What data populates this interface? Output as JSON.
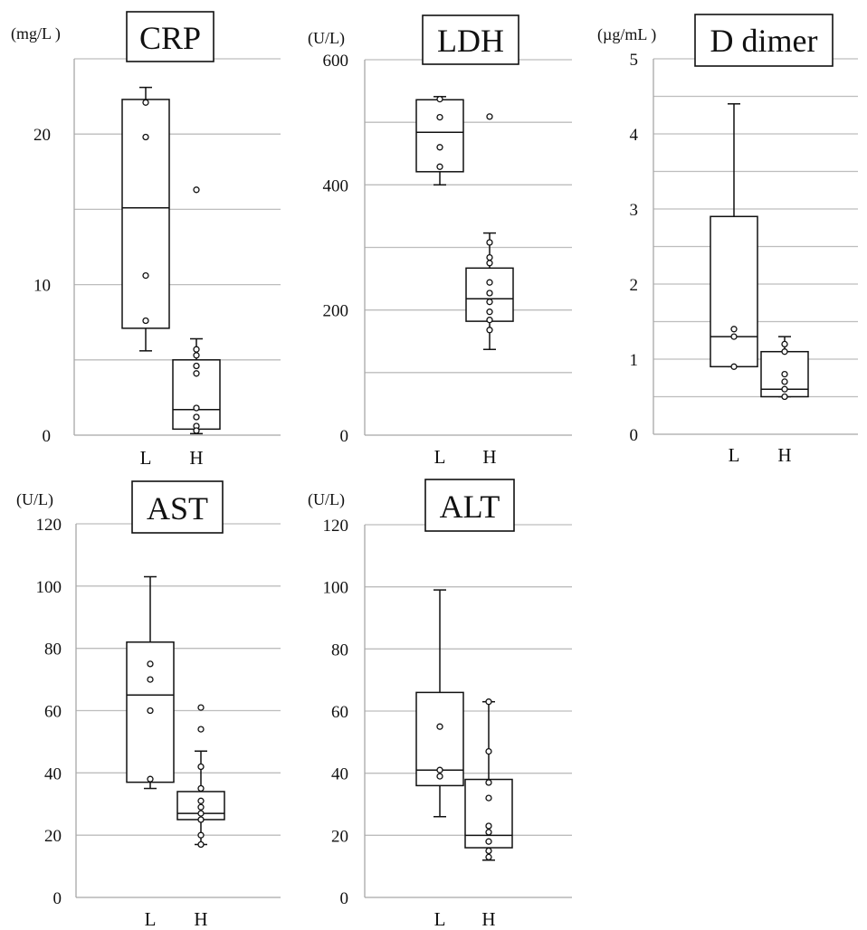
{
  "chart_data": [
    {
      "type": "box",
      "title": "CRP",
      "unit": "(mg/L )",
      "yticks": [
        0,
        10,
        20
      ],
      "ylim": [
        0,
        25
      ],
      "grid": true,
      "categories": [
        "L",
        "H"
      ],
      "boxes": [
        {
          "category": "L",
          "min": 5.6,
          "q1": 7.1,
          "median": 15.1,
          "q3": 22.3,
          "max": 23.1,
          "points": [
            22.1,
            19.8,
            10.6,
            7.6
          ]
        },
        {
          "category": "H",
          "min": 0.1,
          "q1": 0.4,
          "median": 1.7,
          "q3": 5.0,
          "max": 6.4,
          "points": [
            16.3,
            5.7,
            5.3,
            4.6,
            4.1,
            1.8,
            1.2,
            0.6,
            0.3
          ]
        }
      ]
    },
    {
      "type": "box",
      "title": "LDH",
      "unit": "(U/L)",
      "yticks": [
        0,
        200,
        400,
        600
      ],
      "ylim": [
        0,
        600
      ],
      "grid": true,
      "categories": [
        "L",
        "H"
      ],
      "boxes": [
        {
          "category": "L",
          "min": 400,
          "q1": 421,
          "median": 484,
          "q3": 536,
          "max": 541,
          "points": [
            537,
            508,
            460,
            429
          ]
        },
        {
          "category": "H",
          "min": 137,
          "q1": 182,
          "median": 218,
          "q3": 267,
          "max": 323,
          "points": [
            509,
            308,
            284,
            275,
            244,
            227,
            213,
            197,
            184,
            168
          ]
        }
      ]
    },
    {
      "type": "box",
      "title": "D dimer",
      "unit": "(µg/mL )",
      "yticks": [
        0,
        1,
        2,
        3,
        4,
        5
      ],
      "ylim": [
        0,
        5
      ],
      "grid": true,
      "categories": [
        "L",
        "H"
      ],
      "boxes": [
        {
          "category": "L",
          "min": 0.9,
          "q1": 0.9,
          "median": 1.3,
          "q3": 2.9,
          "max": 4.4,
          "points": [
            1.4,
            1.3,
            0.9
          ]
        },
        {
          "category": "H",
          "min": 0.5,
          "q1": 0.5,
          "median": 0.6,
          "q3": 1.1,
          "max": 1.3,
          "points": [
            1.2,
            1.1,
            0.8,
            0.7,
            0.6,
            0.5
          ]
        }
      ]
    },
    {
      "type": "box",
      "title": "AST",
      "unit": "(U/L)",
      "yticks": [
        0,
        20,
        40,
        60,
        80,
        100,
        120
      ],
      "ylim": [
        0,
        120
      ],
      "grid": true,
      "categories": [
        "L",
        "H"
      ],
      "boxes": [
        {
          "category": "L",
          "min": 35,
          "q1": 37,
          "median": 65,
          "q3": 82,
          "max": 103,
          "points": [
            75,
            70,
            60,
            38
          ]
        },
        {
          "category": "H",
          "min": 17,
          "q1": 25,
          "median": 27,
          "q3": 34,
          "max": 47,
          "points": [
            61,
            54,
            42,
            35,
            31,
            29,
            27,
            25,
            20,
            17
          ]
        }
      ]
    },
    {
      "type": "box",
      "title": "ALT",
      "unit": "(U/L)",
      "yticks": [
        0,
        20,
        40,
        60,
        80,
        100,
        120
      ],
      "ylim": [
        0,
        120
      ],
      "grid": true,
      "categories": [
        "L",
        "H"
      ],
      "boxes": [
        {
          "category": "L",
          "min": 26,
          "q1": 36,
          "median": 41,
          "q3": 66,
          "max": 99,
          "points": [
            55,
            41,
            39
          ]
        },
        {
          "category": "H",
          "min": 12,
          "q1": 16,
          "median": 20,
          "q3": 38,
          "max": 63,
          "points": [
            63,
            47,
            37,
            32,
            23,
            21,
            18,
            15,
            13
          ]
        }
      ]
    }
  ]
}
